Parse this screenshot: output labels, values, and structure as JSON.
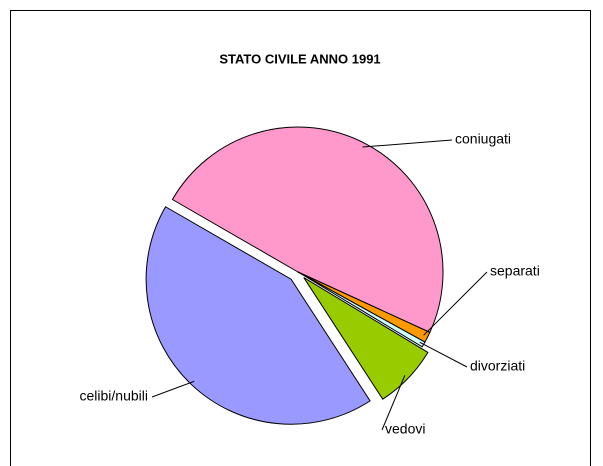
{
  "chart_data": {
    "type": "pie",
    "title": "STATO CIVILE ANNO 1991",
    "categories": [
      "coniugati",
      "separati",
      "divorziati",
      "vedovi",
      "celibi/nubili"
    ],
    "values": [
      48.5,
      1.2,
      0.6,
      7.2,
      42.5
    ],
    "colors": [
      "#ff99cc",
      "#ff9900",
      "#ccffff",
      "#99cc00",
      "#9999ff"
    ]
  }
}
